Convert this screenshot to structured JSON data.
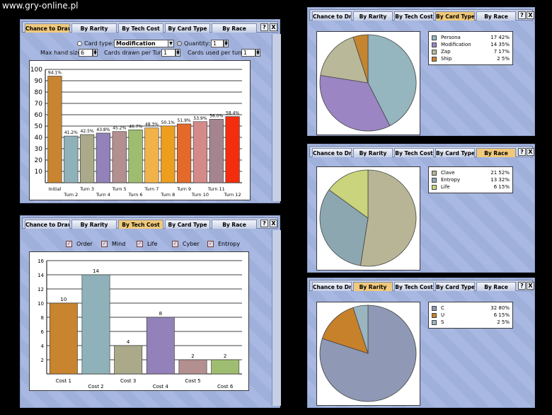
{
  "watermark": "www.gry-online.pl",
  "tabs": [
    "Chance to Draw",
    "By Rarity",
    "By Tech Cost",
    "By Card Type",
    "By Race"
  ],
  "window_buttons": {
    "help": "?",
    "close": "X"
  },
  "controls": {
    "card_type_label": "Card type:",
    "card_type_value": "Modification",
    "quantity_label": "Quantity:",
    "quantity_value": "1",
    "max_hand_label": "Max hand size:",
    "max_hand_value": "6",
    "drawn_label": "Cards drawn per Turn:",
    "drawn_value": "1",
    "used_label": "Cards used per turn:",
    "used_value": "1"
  },
  "filters": [
    {
      "label": "Order",
      "checked": true
    },
    {
      "label": "Mind",
      "checked": true
    },
    {
      "label": "Life",
      "checked": true
    },
    {
      "label": "Cyber",
      "checked": true
    },
    {
      "label": "Entropy",
      "checked": true
    }
  ],
  "chart_data": [
    {
      "type": "bar",
      "categories": [
        "Initial",
        "Turn 2",
        "Turn 3",
        "Turn 4",
        "Turn 5",
        "Turn 6",
        "Turn 7",
        "Turn 8",
        "Turn 9",
        "Turn 10",
        "Turn 11",
        "Turn 12"
      ],
      "values": [
        94.1,
        41.2,
        42.5,
        43.8,
        45.2,
        46.7,
        48.3,
        50.1,
        51.9,
        53.9,
        56.0,
        58.4
      ],
      "labels": [
        "94.1%",
        "41.2%",
        "42.5%",
        "43.8%",
        "45.2%",
        "46.7%",
        "48.3%",
        "50.1%",
        "51.9%",
        "53.9%",
        "56.0%",
        "58.4%"
      ],
      "colors": [
        "#c8842e",
        "#8fb1b9",
        "#aaa98a",
        "#9381b9",
        "#b48f8f",
        "#9fbd70",
        "#f2b24a",
        "#ee9e1e",
        "#e36a2a",
        "#d58a8a",
        "#a58490",
        "#f32d0d"
      ],
      "ylim": [
        0,
        100
      ],
      "yticks": [
        10,
        20,
        30,
        40,
        50,
        60,
        70,
        80,
        90,
        100
      ],
      "grid": true
    },
    {
      "type": "bar",
      "categories": [
        "Cost 1",
        "Cost 2",
        "Cost 3",
        "Cost 4",
        "Cost 5",
        "Cost 6"
      ],
      "values": [
        10,
        14,
        4,
        8,
        2,
        2
      ],
      "colors": [
        "#c8842e",
        "#8fb1b9",
        "#aaa98a",
        "#9381b9",
        "#b48f8f",
        "#9fbd70"
      ],
      "ylim": [
        0,
        16
      ],
      "yticks": [
        2,
        4,
        6,
        8,
        10,
        12,
        14,
        16
      ],
      "grid": true
    },
    {
      "type": "pie",
      "active_tab": "By Card Type",
      "slices": [
        {
          "name": "Persona",
          "count": 17,
          "percent": 42,
          "color": "#95b5bf"
        },
        {
          "name": "Modification",
          "count": 14,
          "percent": 35,
          "color": "#9b85c3"
        },
        {
          "name": "Zap",
          "count": 7,
          "percent": 17,
          "color": "#b9b99a"
        },
        {
          "name": "Ship",
          "count": 2,
          "percent": 5,
          "color": "#c58430"
        }
      ],
      "legend_position": "right"
    },
    {
      "type": "pie",
      "active_tab": "By Race",
      "slices": [
        {
          "name": "Clave",
          "count": 21,
          "percent": 52,
          "color": "#b8b596"
        },
        {
          "name": "Entropy",
          "count": 13,
          "percent": 32,
          "color": "#8da7b1"
        },
        {
          "name": "Life",
          "count": 6,
          "percent": 15,
          "color": "#c9d47c"
        }
      ],
      "legend_position": "right"
    },
    {
      "type": "pie",
      "active_tab": "By Rarity",
      "slices": [
        {
          "name": "C",
          "count": 32,
          "percent": 80,
          "color": "#8f98b4"
        },
        {
          "name": "U",
          "count": 6,
          "percent": 15,
          "color": "#c7812b"
        },
        {
          "name": "S",
          "count": 2,
          "percent": 5,
          "color": "#9ab5c0"
        }
      ],
      "legend_position": "right"
    }
  ]
}
